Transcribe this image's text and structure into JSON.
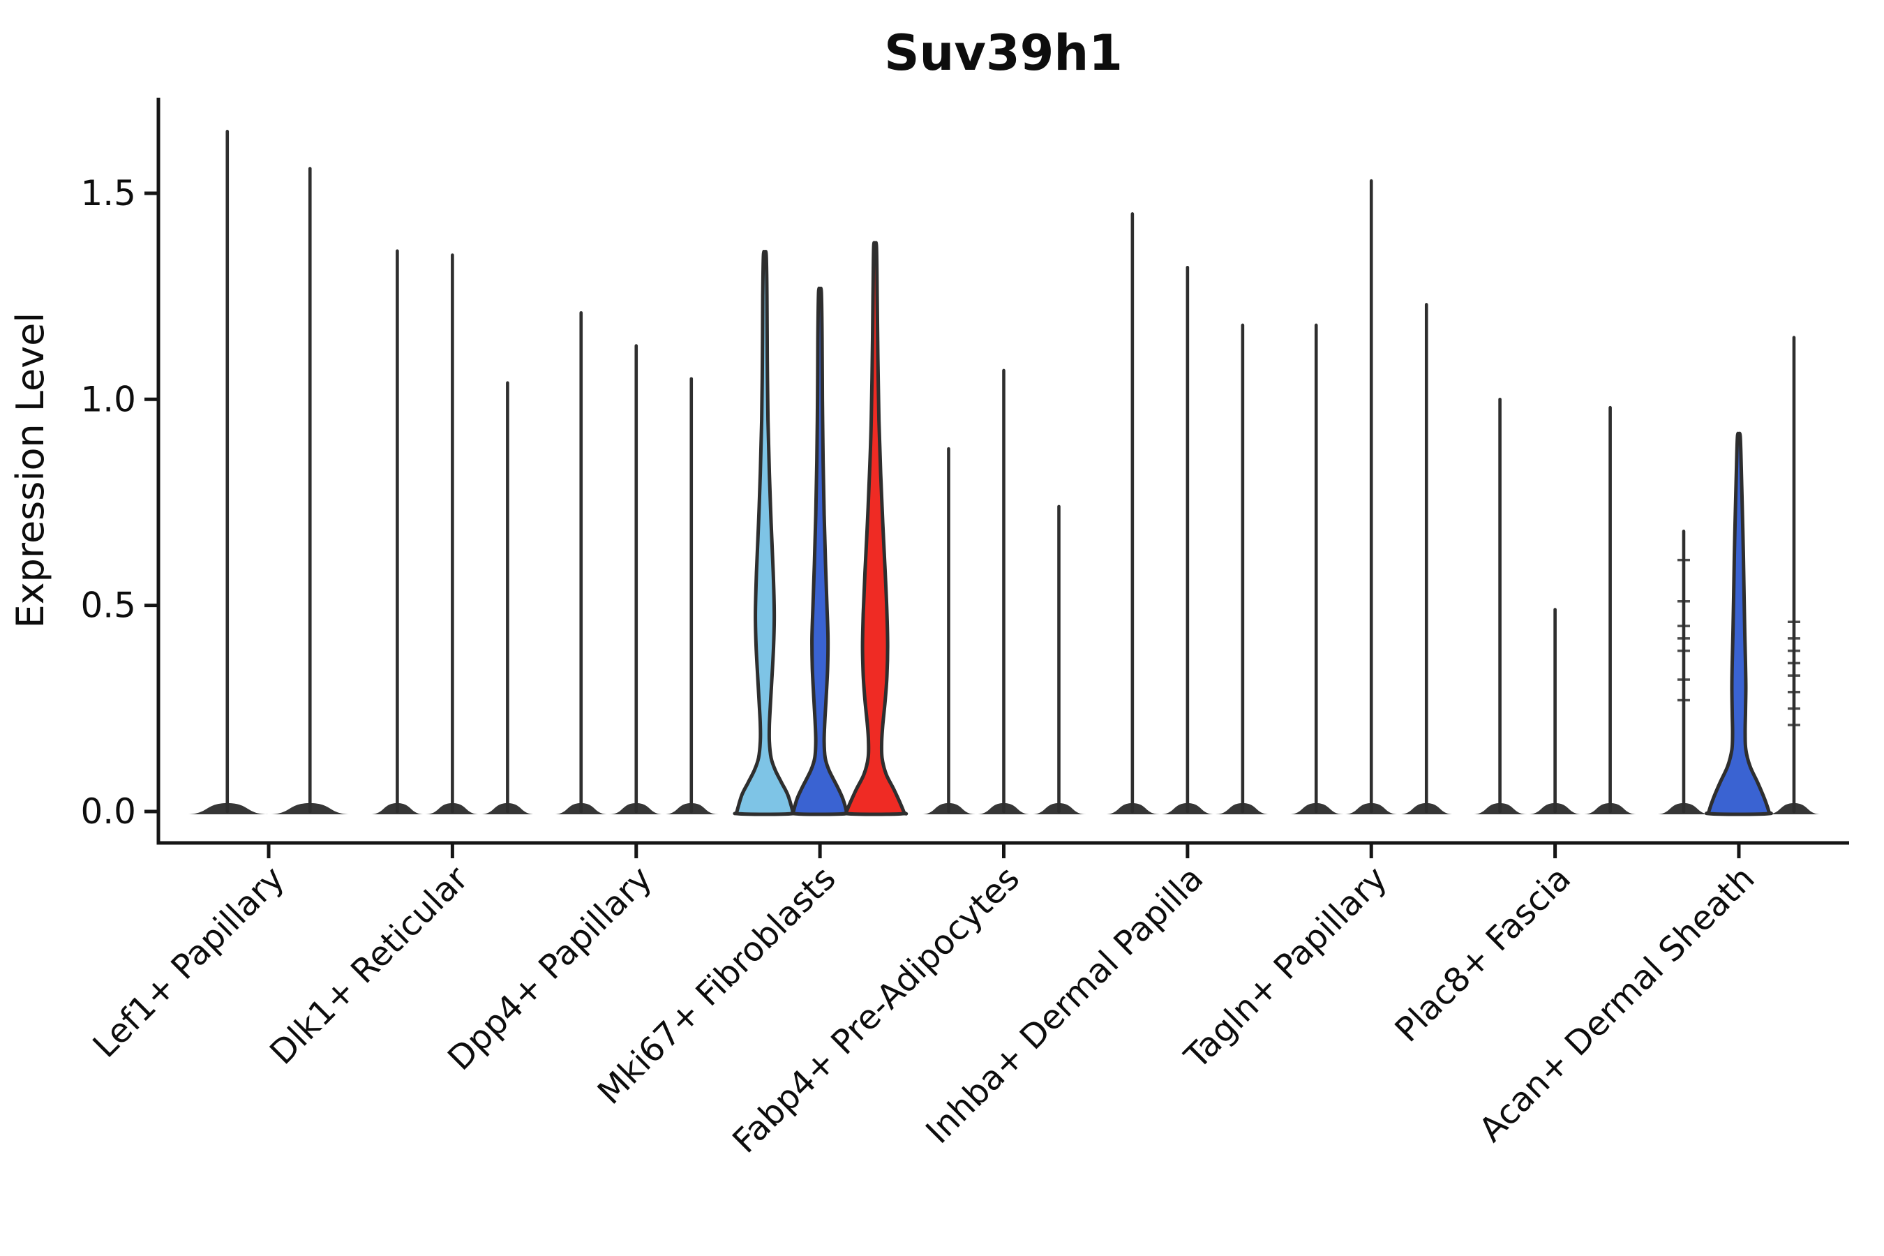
{
  "chart": {
    "title": "Suv39h1",
    "ylabel": "Expression Level",
    "palette": {
      "skyblue": "#7EC4E6",
      "royalblue": "#3A63D2",
      "red": "#EF2B24",
      "violin_line": "#2E2E2E",
      "spine": "#151515",
      "base_mound": "#363636",
      "text": "#0d0d0d"
    },
    "chart_data": {
      "type": "violin",
      "title": "Suv39h1",
      "xlabel": "",
      "ylabel": "Expression Level",
      "ylim": [
        0,
        1.73
      ],
      "yticks": [
        0.0,
        0.5,
        1.0,
        1.5
      ],
      "grid": "off",
      "legend": "none",
      "categories": [
        "Lef1+ Papillary",
        "Dlk1+ Reticular",
        "Dpp4+ Papillary",
        "Mki67+ Fibroblasts",
        "Fabp4+ Pre-Adipocytes",
        "Inhba+ Dermal Papilla",
        "Tagln+ Papillary",
        "Plac8+ Fascia",
        "Acan+ Dermal Sheath"
      ],
      "groups": [
        {
          "label": "Lef1+ Papillary",
          "violins": [
            {
              "max": 1.65,
              "style": "line"
            },
            {
              "max": 1.56,
              "style": "line"
            }
          ]
        },
        {
          "label": "Dlk1+ Reticular",
          "violins": [
            {
              "max": 1.36,
              "style": "line"
            },
            {
              "max": 1.35,
              "style": "line"
            },
            {
              "max": 1.04,
              "style": "line"
            }
          ]
        },
        {
          "label": "Dpp4+ Papillary",
          "violins": [
            {
              "max": 1.21,
              "style": "line"
            },
            {
              "max": 1.13,
              "style": "line"
            },
            {
              "max": 1.05,
              "style": "line"
            }
          ]
        },
        {
          "label": "Mki67+ Fibroblasts",
          "violins": [
            {
              "max": 1.35,
              "style": "filled",
              "color": "skyblue",
              "profile": [
                [
                  1.35,
                  2
                ],
                [
                  1.25,
                  3
                ],
                [
                  1.1,
                  3.5
                ],
                [
                  0.95,
                  4.5
                ],
                [
                  0.82,
                  6.5
                ],
                [
                  0.7,
                  9
                ],
                [
                  0.58,
                  12
                ],
                [
                  0.48,
                  13.5
                ],
                [
                  0.4,
                  12.5
                ],
                [
                  0.32,
                  10
                ],
                [
                  0.26,
                  8
                ],
                [
                  0.21,
                  6.5
                ],
                [
                  0.17,
                  6.5
                ],
                [
                  0.13,
                  9
                ],
                [
                  0.1,
                  15
                ],
                [
                  0.07,
                  24
                ],
                [
                  0.04,
                  33
                ],
                [
                  0.0,
                  40
                ]
              ]
            },
            {
              "max": 1.26,
              "style": "filled",
              "color": "royalblue",
              "profile": [
                [
                  1.26,
                  2
                ],
                [
                  1.15,
                  3
                ],
                [
                  1.0,
                  3.5
                ],
                [
                  0.85,
                  4.5
                ],
                [
                  0.72,
                  6
                ],
                [
                  0.6,
                  8
                ],
                [
                  0.5,
                  10
                ],
                [
                  0.42,
                  11.5
                ],
                [
                  0.35,
                  11
                ],
                [
                  0.28,
                  9
                ],
                [
                  0.22,
                  7
                ],
                [
                  0.17,
                  6
                ],
                [
                  0.13,
                  7.5
                ],
                [
                  0.1,
                  13
                ],
                [
                  0.06,
                  25
                ],
                [
                  0.03,
                  33
                ],
                [
                  0.0,
                  38
                ]
              ]
            },
            {
              "max": 1.37,
              "style": "filled",
              "color": "red",
              "profile": [
                [
                  1.37,
                  2
                ],
                [
                  1.25,
                  3
                ],
                [
                  1.1,
                  4
                ],
                [
                  0.95,
                  5.5
                ],
                [
                  0.82,
                  8
                ],
                [
                  0.7,
                  11
                ],
                [
                  0.58,
                  14.5
                ],
                [
                  0.48,
                  17
                ],
                [
                  0.4,
                  18
                ],
                [
                  0.33,
                  17
                ],
                [
                  0.27,
                  14.5
                ],
                [
                  0.21,
                  11
                ],
                [
                  0.17,
                  9.5
                ],
                [
                  0.13,
                  10
                ],
                [
                  0.09,
                  16
                ],
                [
                  0.05,
                  28
                ],
                [
                  0.0,
                  41
                ]
              ]
            }
          ]
        },
        {
          "label": "Fabp4+ Pre-Adipocytes",
          "violins": [
            {
              "max": 0.88,
              "style": "line"
            },
            {
              "max": 1.07,
              "style": "line"
            },
            {
              "max": 0.74,
              "style": "line"
            }
          ]
        },
        {
          "label": "Inhba+ Dermal Papilla",
          "violins": [
            {
              "max": 1.45,
              "style": "line"
            },
            {
              "max": 1.32,
              "style": "line"
            },
            {
              "max": 1.18,
              "style": "line"
            }
          ]
        },
        {
          "label": "Tagln+ Papillary",
          "violins": [
            {
              "max": 1.18,
              "style": "line"
            },
            {
              "max": 1.53,
              "style": "line"
            },
            {
              "max": 1.23,
              "style": "line"
            }
          ]
        },
        {
          "label": "Plac8+ Fascia",
          "violins": [
            {
              "max": 1.0,
              "style": "line"
            },
            {
              "max": 0.49,
              "style": "line"
            },
            {
              "max": 0.98,
              "style": "line"
            }
          ]
        },
        {
          "label": "Acan+ Dermal Sheath",
          "violins": [
            {
              "max": 0.68,
              "style": "line",
              "points": [
                0.61,
                0.51,
                0.45,
                0.42,
                0.39,
                0.32,
                0.27
              ]
            },
            {
              "max": 0.91,
              "style": "filled",
              "color": "royalblue",
              "profile": [
                [
                  0.91,
                  2
                ],
                [
                  0.83,
                  3.5
                ],
                [
                  0.73,
                  5
                ],
                [
                  0.62,
                  6.5
                ],
                [
                  0.52,
                  7.5
                ],
                [
                  0.43,
                  8.5
                ],
                [
                  0.36,
                  9.5
                ],
                [
                  0.3,
                  10
                ],
                [
                  0.24,
                  9.5
                ],
                [
                  0.19,
                  9
                ],
                [
                  0.15,
                  10
                ],
                [
                  0.11,
                  16
                ],
                [
                  0.07,
                  27
                ],
                [
                  0.03,
                  37
                ],
                [
                  0.0,
                  43
                ]
              ]
            },
            {
              "max": 1.15,
              "style": "line",
              "points": [
                0.46,
                0.42,
                0.39,
                0.36,
                0.33,
                0.29,
                0.25,
                0.21
              ]
            }
          ]
        }
      ]
    }
  }
}
